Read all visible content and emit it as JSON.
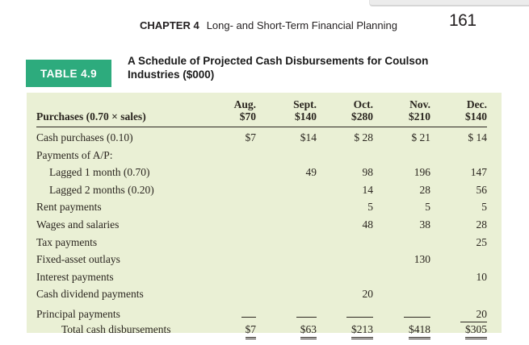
{
  "header": {
    "chapter_label": "CHAPTER 4",
    "chapter_title": "Long- and Short-Term Financial Planning",
    "page_number": "161"
  },
  "table": {
    "tag": "TABLE 4.9",
    "title_line1": "A Schedule of Projected Cash Disbursements for Coulson",
    "title_line2": "Industries ($000)",
    "columns": [
      "Aug.",
      "Sept.",
      "Oct.",
      "Nov.",
      "Dec."
    ],
    "header_row": {
      "label": "Purchases (0.70 × sales)",
      "values": [
        "$70",
        "$140",
        "$280",
        "$210",
        "$140"
      ]
    },
    "rows": [
      {
        "label": "Cash purchases (0.10)",
        "indent": 0,
        "values": [
          "$7",
          "$14",
          "$ 28",
          "$ 21",
          "$ 14"
        ]
      },
      {
        "label": "Payments of A/P:",
        "indent": 0,
        "values": [
          "",
          "",
          "",
          "",
          ""
        ]
      },
      {
        "label": "Lagged 1 month (0.70)",
        "indent": 1,
        "values": [
          "",
          "49",
          "98",
          "196",
          "147"
        ]
      },
      {
        "label": "Lagged 2 months (0.20)",
        "indent": 1,
        "values": [
          "",
          "",
          "14",
          "28",
          "56"
        ]
      },
      {
        "label": "Rent payments",
        "indent": 0,
        "values": [
          "",
          "",
          "5",
          "5",
          "5"
        ]
      },
      {
        "label": "Wages and salaries",
        "indent": 0,
        "values": [
          "",
          "",
          "48",
          "38",
          "28"
        ]
      },
      {
        "label": "Tax payments",
        "indent": 0,
        "values": [
          "",
          "",
          "",
          "",
          "25"
        ]
      },
      {
        "label": "Fixed-asset outlays",
        "indent": 0,
        "values": [
          "",
          "",
          "",
          "130",
          ""
        ]
      },
      {
        "label": "Interest payments",
        "indent": 0,
        "values": [
          "",
          "",
          "",
          "",
          "10"
        ]
      },
      {
        "label": "Cash dividend payments",
        "indent": 0,
        "values": [
          "",
          "",
          "20",
          "",
          ""
        ]
      },
      {
        "label": "Principal payments",
        "indent": 0,
        "values": [
          "",
          "",
          "",
          "",
          "20"
        ],
        "rule_below": true
      },
      {
        "label": "Total cash disbursements",
        "indent": 2,
        "values": [
          "$7",
          "$63",
          "$213",
          "$418",
          "$305"
        ],
        "total": true
      }
    ],
    "colors": {
      "tag_bg": "#2dab7d",
      "table_bg": "#eaf0d5"
    }
  }
}
